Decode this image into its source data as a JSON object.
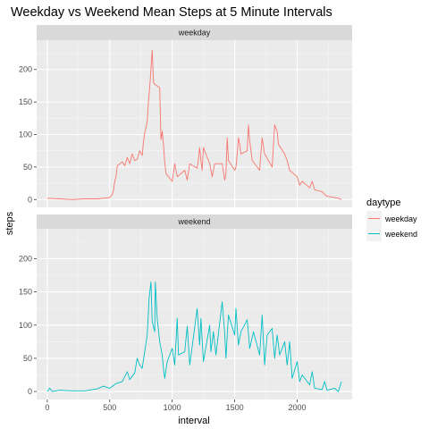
{
  "chart_data": {
    "type": "line",
    "title": "Weekday vs Weekend Mean Steps at 5 Minute Intervals",
    "xlabel": "interval",
    "ylabel": "steps",
    "xlim": [
      -85,
      2440
    ],
    "ylim": [
      -12,
      245
    ],
    "x_ticks": [
      0,
      500,
      1000,
      1500,
      2000
    ],
    "y_ticks": [
      0,
      50,
      100,
      150,
      200
    ],
    "grid": true,
    "legend": {
      "title": "daytype",
      "position": "right"
    },
    "facets": [
      "weekday",
      "weekend"
    ],
    "series": [
      {
        "name": "weekday",
        "color": "#F8766D",
        "x": [
          0,
          100,
          200,
          300,
          400,
          500,
          520,
          530,
          540,
          550,
          560,
          600,
          620,
          640,
          660,
          680,
          700,
          720,
          740,
          760,
          770,
          780,
          800,
          810,
          820,
          830,
          835,
          840,
          845,
          850,
          855,
          900,
          910,
          920,
          930,
          940,
          950,
          1000,
          1020,
          1040,
          1100,
          1120,
          1140,
          1200,
          1210,
          1220,
          1230,
          1240,
          1250,
          1300,
          1320,
          1340,
          1400,
          1420,
          1430,
          1440,
          1450,
          1500,
          1510,
          1520,
          1530,
          1540,
          1550,
          1600,
          1610,
          1620,
          1640,
          1700,
          1720,
          1740,
          1800,
          1820,
          1840,
          1850,
          1900,
          1920,
          1940,
          2000,
          2020,
          2040,
          2100,
          2120,
          2140,
          2200,
          2220,
          2240,
          2300,
          2330,
          2355
        ],
        "values": [
          2,
          1,
          0,
          1,
          1,
          3,
          8,
          14,
          28,
          35,
          52,
          58,
          52,
          65,
          55,
          70,
          60,
          62,
          75,
          68,
          88,
          102,
          120,
          150,
          172,
          200,
          215,
          230,
          205,
          182,
          178,
          172,
          92,
          105,
          85,
          58,
          40,
          28,
          55,
          35,
          45,
          30,
          55,
          48,
          62,
          80,
          60,
          45,
          80,
          55,
          35,
          55,
          55,
          30,
          40,
          95,
          60,
          45,
          50,
          70,
          95,
          85,
          70,
          75,
          115,
          90,
          60,
          45,
          95,
          70,
          50,
          115,
          105,
          85,
          70,
          60,
          45,
          35,
          22,
          28,
          18,
          28,
          15,
          12,
          8,
          5,
          3,
          2,
          0
        ]
      },
      {
        "name": "weekend",
        "color": "#00BFC4",
        "x": [
          0,
          20,
          40,
          100,
          200,
          300,
          400,
          450,
          500,
          550,
          600,
          640,
          660,
          700,
          720,
          740,
          760,
          780,
          800,
          810,
          815,
          830,
          840,
          860,
          865,
          880,
          900,
          920,
          930,
          940,
          960,
          1000,
          1020,
          1040,
          1050,
          1100,
          1120,
          1140,
          1200,
          1220,
          1230,
          1250,
          1300,
          1310,
          1330,
          1350,
          1400,
          1420,
          1430,
          1450,
          1500,
          1510,
          1530,
          1550,
          1600,
          1620,
          1650,
          1700,
          1720,
          1740,
          1760,
          1800,
          1820,
          1840,
          1860,
          1900,
          1920,
          1940,
          1960,
          2000,
          2020,
          2040,
          2100,
          2120,
          2140,
          2200,
          2220,
          2240,
          2300,
          2330,
          2355
        ],
        "values": [
          0,
          5,
          0,
          2,
          1,
          1,
          4,
          8,
          5,
          12,
          15,
          30,
          18,
          28,
          50,
          40,
          35,
          60,
          85,
          120,
          140,
          165,
          105,
          90,
          165,
          110,
          75,
          55,
          35,
          20,
          45,
          65,
          40,
          110,
          55,
          60,
          98,
          40,
          125,
          70,
          110,
          45,
          100,
          60,
          90,
          55,
          135,
          88,
          50,
          115,
          85,
          125,
          70,
          90,
          108,
          65,
          90,
          55,
          115,
          40,
          85,
          95,
          50,
          85,
          55,
          75,
          40,
          75,
          20,
          45,
          15,
          25,
          10,
          30,
          5,
          3,
          15,
          2,
          5,
          0,
          15
        ]
      }
    ]
  }
}
